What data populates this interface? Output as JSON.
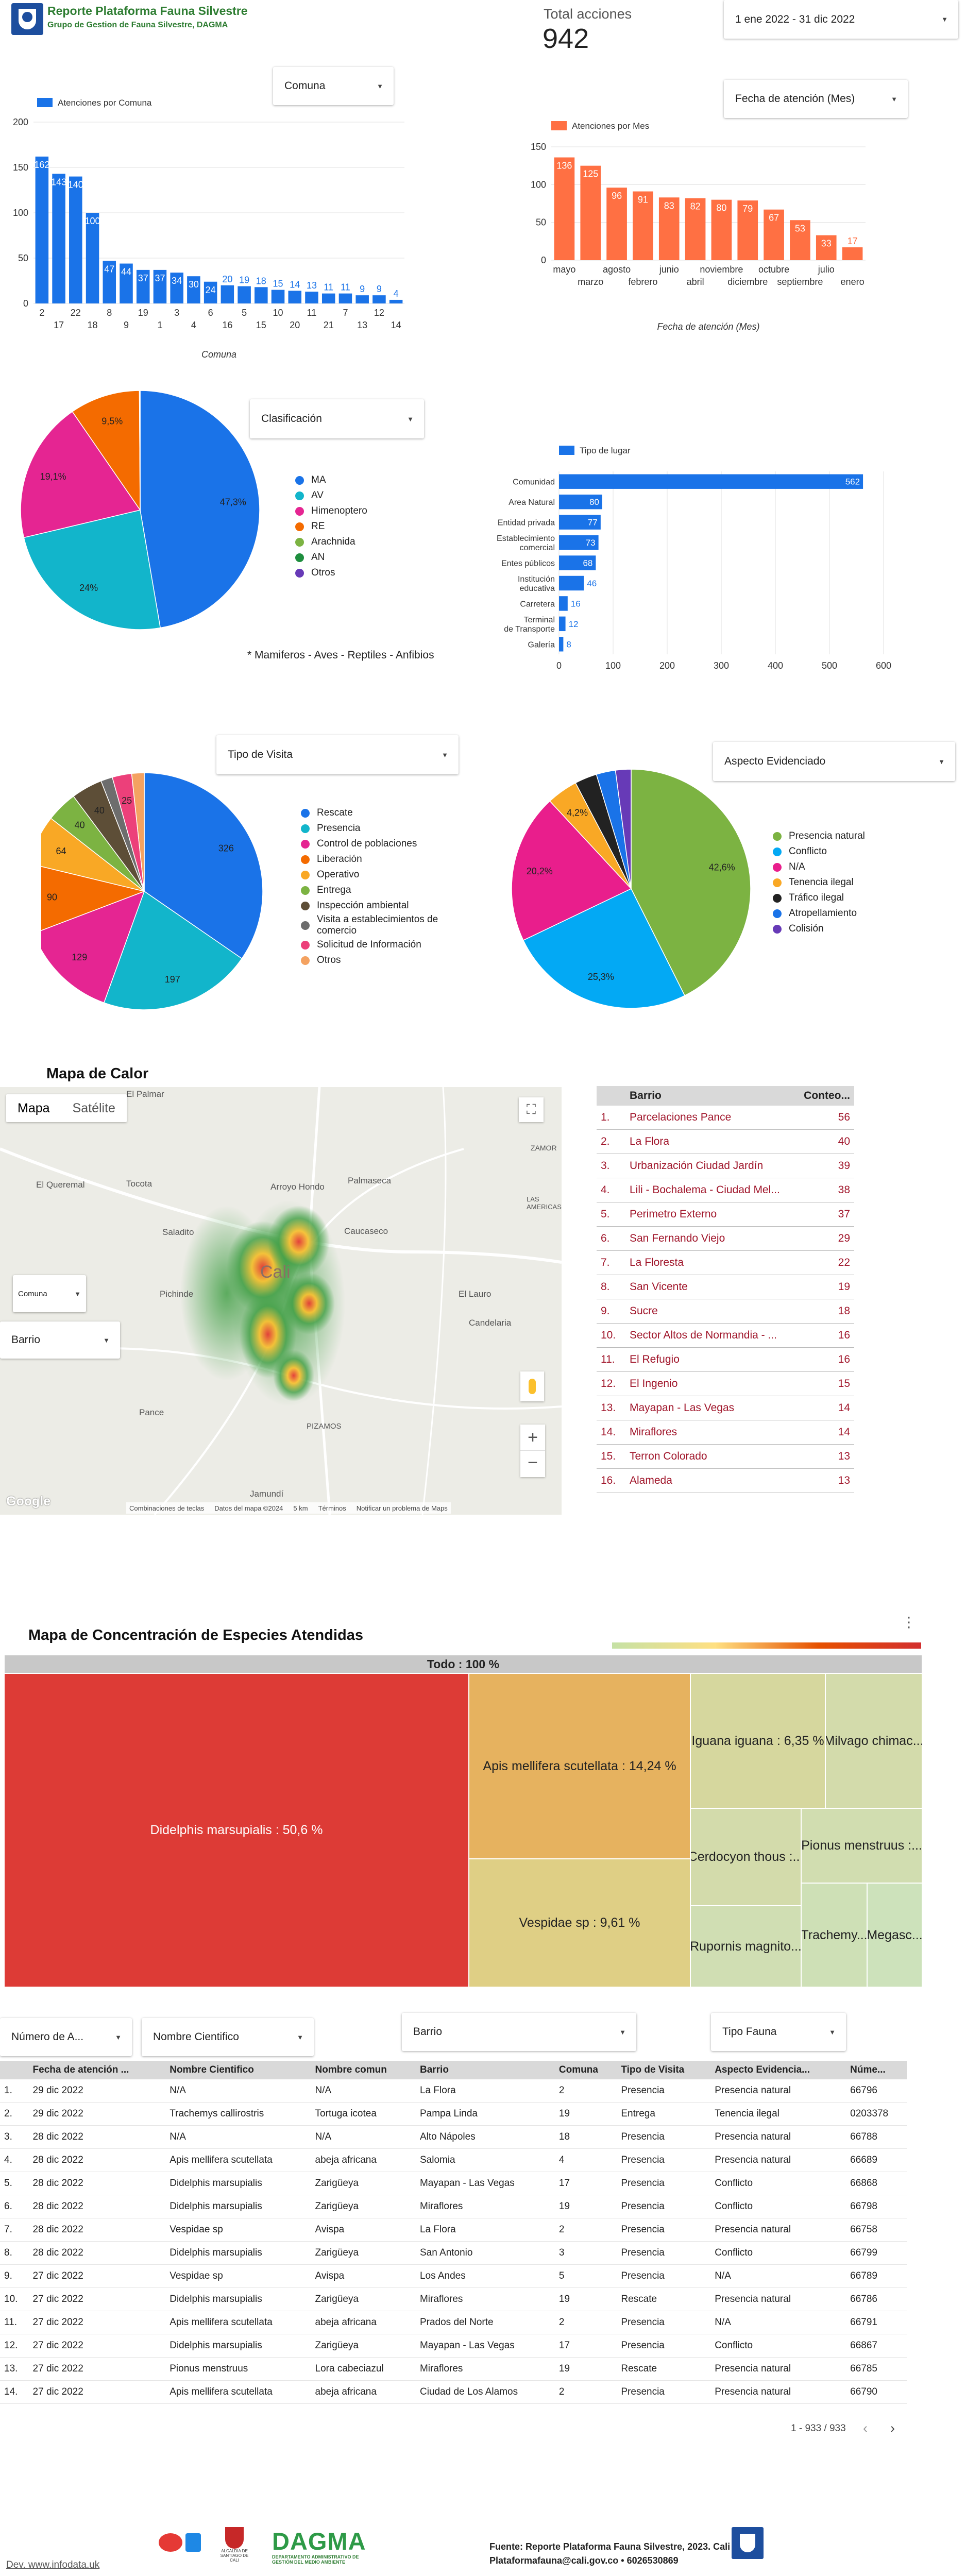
{
  "header": {
    "title": "Reporte Plataforma Fauna Silvestre",
    "subtitle": "Grupo de Gestion de Fauna Silvestre, DAGMA",
    "total_label": "Total acciones",
    "total_value": "942",
    "date_range": "1 ene 2022 - 31 dic 2022"
  },
  "colors": {
    "blue": "#1a73e8",
    "orange": "#ff7043",
    "title_green": "#2e7d32"
  },
  "filters": {
    "comuna": "Comuna",
    "fecha_mes": "Fecha de atención (Mes)",
    "clasificacion": "Clasificación",
    "tipo_visita": "Tipo de Visita",
    "aspecto": "Aspecto Evidenciado",
    "map_comuna": "Comuna",
    "map_barrio": "Barrio",
    "numero": "Número de A...",
    "nombre_cientifico": "Nombre Cientifico",
    "barrio": "Barrio",
    "tipo_fauna": "Tipo Fauna"
  },
  "chart_data": [
    {
      "type": "bar",
      "legend": "Atenciones por Comuna",
      "xlabel": "Comuna",
      "ylim": [
        0,
        200
      ],
      "yticks": [
        "200",
        "150",
        "100",
        "50",
        "0"
      ],
      "categories": [
        "2",
        "17",
        "22",
        "18",
        "8",
        "9",
        "19",
        "1",
        "3",
        "4",
        "6",
        "16",
        "5",
        "15",
        "10",
        "20",
        "11",
        "21",
        "7",
        "13",
        "12",
        "14"
      ],
      "values": [
        162,
        143,
        140,
        100,
        47,
        44,
        37,
        37,
        34,
        30,
        24,
        20,
        19,
        18,
        15,
        14,
        13,
        11,
        11,
        9,
        9,
        4
      ]
    },
    {
      "type": "bar",
      "legend": "Atenciones por Mes",
      "xlabel": "Fecha de atención (Mes)",
      "ylim": [
        0,
        150
      ],
      "yticks": [
        "150",
        "100",
        "50",
        "0"
      ],
      "categories": [
        "mayo",
        "marzo",
        "agosto",
        "febrero",
        "junio",
        "abril",
        "noviembre",
        "diciembre",
        "octubre",
        "septiembre",
        "julio",
        "enero"
      ],
      "values": [
        136,
        125,
        96,
        91,
        83,
        82,
        80,
        79,
        67,
        53,
        33,
        17
      ]
    },
    {
      "type": "pie",
      "title": "Clasificación",
      "labels": [
        "MA",
        "AV",
        "Himenoptero",
        "RE",
        "Arachnida",
        "AN",
        "Otros"
      ],
      "values": [
        47.3,
        24.0,
        19.1,
        9.5,
        0.05,
        0.03,
        0.02
      ],
      "slice_labels": [
        "47,3%",
        "24%",
        "19,1%",
        "9,5%",
        "",
        "",
        ""
      ],
      "colors": [
        "#1a73e8",
        "#12b5cb",
        "#e52592",
        "#f46b00",
        "#7cb342",
        "#1e8e3e",
        "#673ab7"
      ],
      "note": "* Mamiferos - Aves - Reptiles - Anfibios"
    },
    {
      "type": "bar",
      "legend": "Tipo de lugar",
      "orientation": "horizontal",
      "xlim": [
        0,
        600
      ],
      "xticks": [
        "0",
        "100",
        "200",
        "300",
        "400",
        "500",
        "600"
      ],
      "categories": [
        "Comunidad",
        "Area Natural",
        "Entidad privada",
        "Establecimiento comercial",
        "Entes públicos",
        "Institución educativa",
        "Carretera",
        "Terminal de Transporte",
        "Galería"
      ],
      "values": [
        562,
        80,
        77,
        73,
        68,
        46,
        16,
        12,
        8
      ]
    },
    {
      "type": "pie",
      "title": "Tipo de Visita",
      "labels": [
        "Rescate",
        "Presencia",
        "Control de poblaciones",
        "Liberación",
        "Operativo",
        "Entrega",
        "Inspección ambiental",
        "Visita a establecimientos de comercio",
        "Solicitud de Información",
        "Otros"
      ],
      "values": [
        326,
        197,
        129,
        90,
        64,
        40,
        40,
        15,
        25,
        16
      ],
      "slice_labels": [
        "326",
        "197",
        "129",
        "90",
        "64",
        "40",
        "40",
        "",
        "25",
        ""
      ],
      "colors": [
        "#1a73e8",
        "#12b5cb",
        "#e52592",
        "#f46b00",
        "#f9a825",
        "#7cb342",
        "#5d4e37",
        "#6d6d6d",
        "#ec407a",
        "#f4a261"
      ]
    },
    {
      "type": "pie",
      "title": "Aspecto Evidenciado",
      "labels": [
        "Presencia natural",
        "Conflicto",
        "N/A",
        "Tenencia ilegal",
        "Tráfico ilegal",
        "Atropellamiento",
        "Colisión"
      ],
      "values": [
        42.6,
        25.3,
        20.2,
        4.2,
        3.0,
        2.6,
        2.1
      ],
      "slice_labels": [
        "42,6%",
        "25,3%",
        "20,2%",
        "4,2%",
        "",
        "",
        ""
      ],
      "colors": [
        "#7cb342",
        "#03a9f4",
        "#e91e8c",
        "#f9a825",
        "#222222",
        "#1a73e8",
        "#673ab7"
      ]
    }
  ],
  "map": {
    "title": "Mapa de Calor",
    "tab_map": "Mapa",
    "tab_sat": "Satélite",
    "places": [
      "El Palmar",
      "El Queremal",
      "Tocota",
      "Arroyo Hondo",
      "Palmaseca",
      "ZAMOR",
      "LAS AMERICAS",
      "Saladito",
      "Caucaseco",
      "Pichinde",
      "Cali",
      "El Lauro",
      "Candelaria",
      "Pance",
      "PIZAMOS",
      "Jamundí"
    ],
    "footer": [
      "Combinaciones de teclas",
      "Datos del mapa ©2024",
      "5 km",
      "Términos",
      "Notificar un problema de Maps"
    ],
    "google": "Google"
  },
  "barrio_table": {
    "headers": [
      "Barrio",
      "Conteo..."
    ],
    "rows": [
      {
        "n": "1.",
        "name": "Parcelaciones Pance",
        "count": "56"
      },
      {
        "n": "2.",
        "name": "La Flora",
        "count": "40"
      },
      {
        "n": "3.",
        "name": "Urbanización Ciudad Jardín",
        "count": "39"
      },
      {
        "n": "4.",
        "name": "Lili - Bochalema - Ciudad Mel...",
        "count": "38"
      },
      {
        "n": "5.",
        "name": "Perimetro Externo",
        "count": "37"
      },
      {
        "n": "6.",
        "name": "San Fernando Viejo",
        "count": "29"
      },
      {
        "n": "7.",
        "name": "La Floresta",
        "count": "22"
      },
      {
        "n": "8.",
        "name": "San Vicente",
        "count": "19"
      },
      {
        "n": "9.",
        "name": "Sucre",
        "count": "18"
      },
      {
        "n": "10.",
        "name": "Sector Altos de Normandia - ...",
        "count": "16"
      },
      {
        "n": "11.",
        "name": "El Refugio",
        "count": "16"
      },
      {
        "n": "12.",
        "name": "El Ingenio",
        "count": "15"
      },
      {
        "n": "13.",
        "name": "Mayapan - Las Vegas",
        "count": "14"
      },
      {
        "n": "14.",
        "name": "Miraflores",
        "count": "14"
      },
      {
        "n": "15.",
        "name": "Terron Colorado",
        "count": "13"
      },
      {
        "n": "16.",
        "name": "Alameda",
        "count": "13"
      }
    ]
  },
  "treemap": {
    "title": "Mapa de Concentración de Especies Atendidas",
    "root": "Todo : 100 %",
    "cells": [
      "Didelphis marsupialis : 50,6 %",
      "Apis mellifera scutellata : 14,24 %",
      "Vespidae sp : 9,61 %",
      "Iguana iguana : 6,35 %",
      "Milvago chimac...",
      "Cerdocyon thous :...",
      "Pionus menstruus :...",
      "Rupornis magnito...",
      "Trachemy...",
      "Megasc..."
    ]
  },
  "main_table": {
    "headers": [
      "",
      "Fecha de atención ...",
      "Nombre Cientifico",
      "Nombre comun",
      "Barrio",
      "Comuna",
      "Tipo de Visita",
      "Aspecto Evidencia...",
      "Núme..."
    ],
    "rows": [
      [
        "1.",
        "29 dic 2022",
        "N/A",
        "N/A",
        "La Flora",
        "2",
        "Presencia",
        "Presencia natural",
        "66796"
      ],
      [
        "2.",
        "29 dic 2022",
        "Trachemys callirostris",
        "Tortuga icotea",
        "Pampa Linda",
        "19",
        "Entrega",
        "Tenencia ilegal",
        "0203378"
      ],
      [
        "3.",
        "28 dic 2022",
        "N/A",
        "N/A",
        "Alto Nápoles",
        "18",
        "Presencia",
        "Presencia natural",
        "66788"
      ],
      [
        "4.",
        "28 dic 2022",
        "Apis mellifera scutellata",
        "abeja africana",
        "Salomia",
        "4",
        "Presencia",
        "Presencia natural",
        "66689"
      ],
      [
        "5.",
        "28 dic 2022",
        "Didelphis marsupialis",
        "Zarigüeya",
        "Mayapan - Las Vegas",
        "17",
        "Presencia",
        "Conflicto",
        "66868"
      ],
      [
        "6.",
        "28 dic 2022",
        "Didelphis marsupialis",
        "Zarigüeya",
        "Miraflores",
        "19",
        "Presencia",
        "Conflicto",
        "66798"
      ],
      [
        "7.",
        "28 dic 2022",
        "Vespidae sp",
        "Avispa",
        "La Flora",
        "2",
        "Presencia",
        "Presencia natural",
        "66758"
      ],
      [
        "8.",
        "28 dic 2022",
        "Didelphis marsupialis",
        "Zarigüeya",
        "San Antonio",
        "3",
        "Presencia",
        "Conflicto",
        "66799"
      ],
      [
        "9.",
        "27 dic 2022",
        "Vespidae sp",
        "Avispa",
        "Los Andes",
        "5",
        "Presencia",
        "N/A",
        "66789"
      ],
      [
        "10.",
        "27 dic 2022",
        "Didelphis marsupialis",
        "Zarigüeya",
        "Miraflores",
        "19",
        "Rescate",
        "Presencia natural",
        "66786"
      ],
      [
        "11.",
        "27 dic 2022",
        "Apis mellifera scutellata",
        "abeja africana",
        "Prados del Norte",
        "2",
        "Presencia",
        "N/A",
        "66791"
      ],
      [
        "12.",
        "27 dic 2022",
        "Didelphis marsupialis",
        "Zarigüeya",
        "Mayapan - Las Vegas",
        "17",
        "Presencia",
        "Conflicto",
        "66867"
      ],
      [
        "13.",
        "27 dic 2022",
        "Pionus menstruus",
        "Lora cabeciazul",
        "Miraflores",
        "19",
        "Rescate",
        "Presencia natural",
        "66785"
      ],
      [
        "14.",
        "27 dic 2022",
        "Apis mellifera scutellata",
        "abeja africana",
        "Ciudad de Los Alamos",
        "2",
        "Presencia",
        "Presencia natural",
        "66790"
      ]
    ],
    "pagination": "1 - 933 / 933"
  },
  "footer": {
    "dev": "Dev. www.infodata.uk",
    "dagma": "DAGMA",
    "dagma_sub": "DEPARTAMENTO ADMINISTRATIVO DE GESTIÓN DEL MEDIO AMBIENTE",
    "fuente": "Fuente: Reporte Plataforma Fauna Silvestre, 2023. Cali",
    "contact": "Plataformafauna@cali.gov.co  •  6026530869",
    "alcaldia": "ALCALDÍA DE SANTIAGO DE CALI"
  }
}
